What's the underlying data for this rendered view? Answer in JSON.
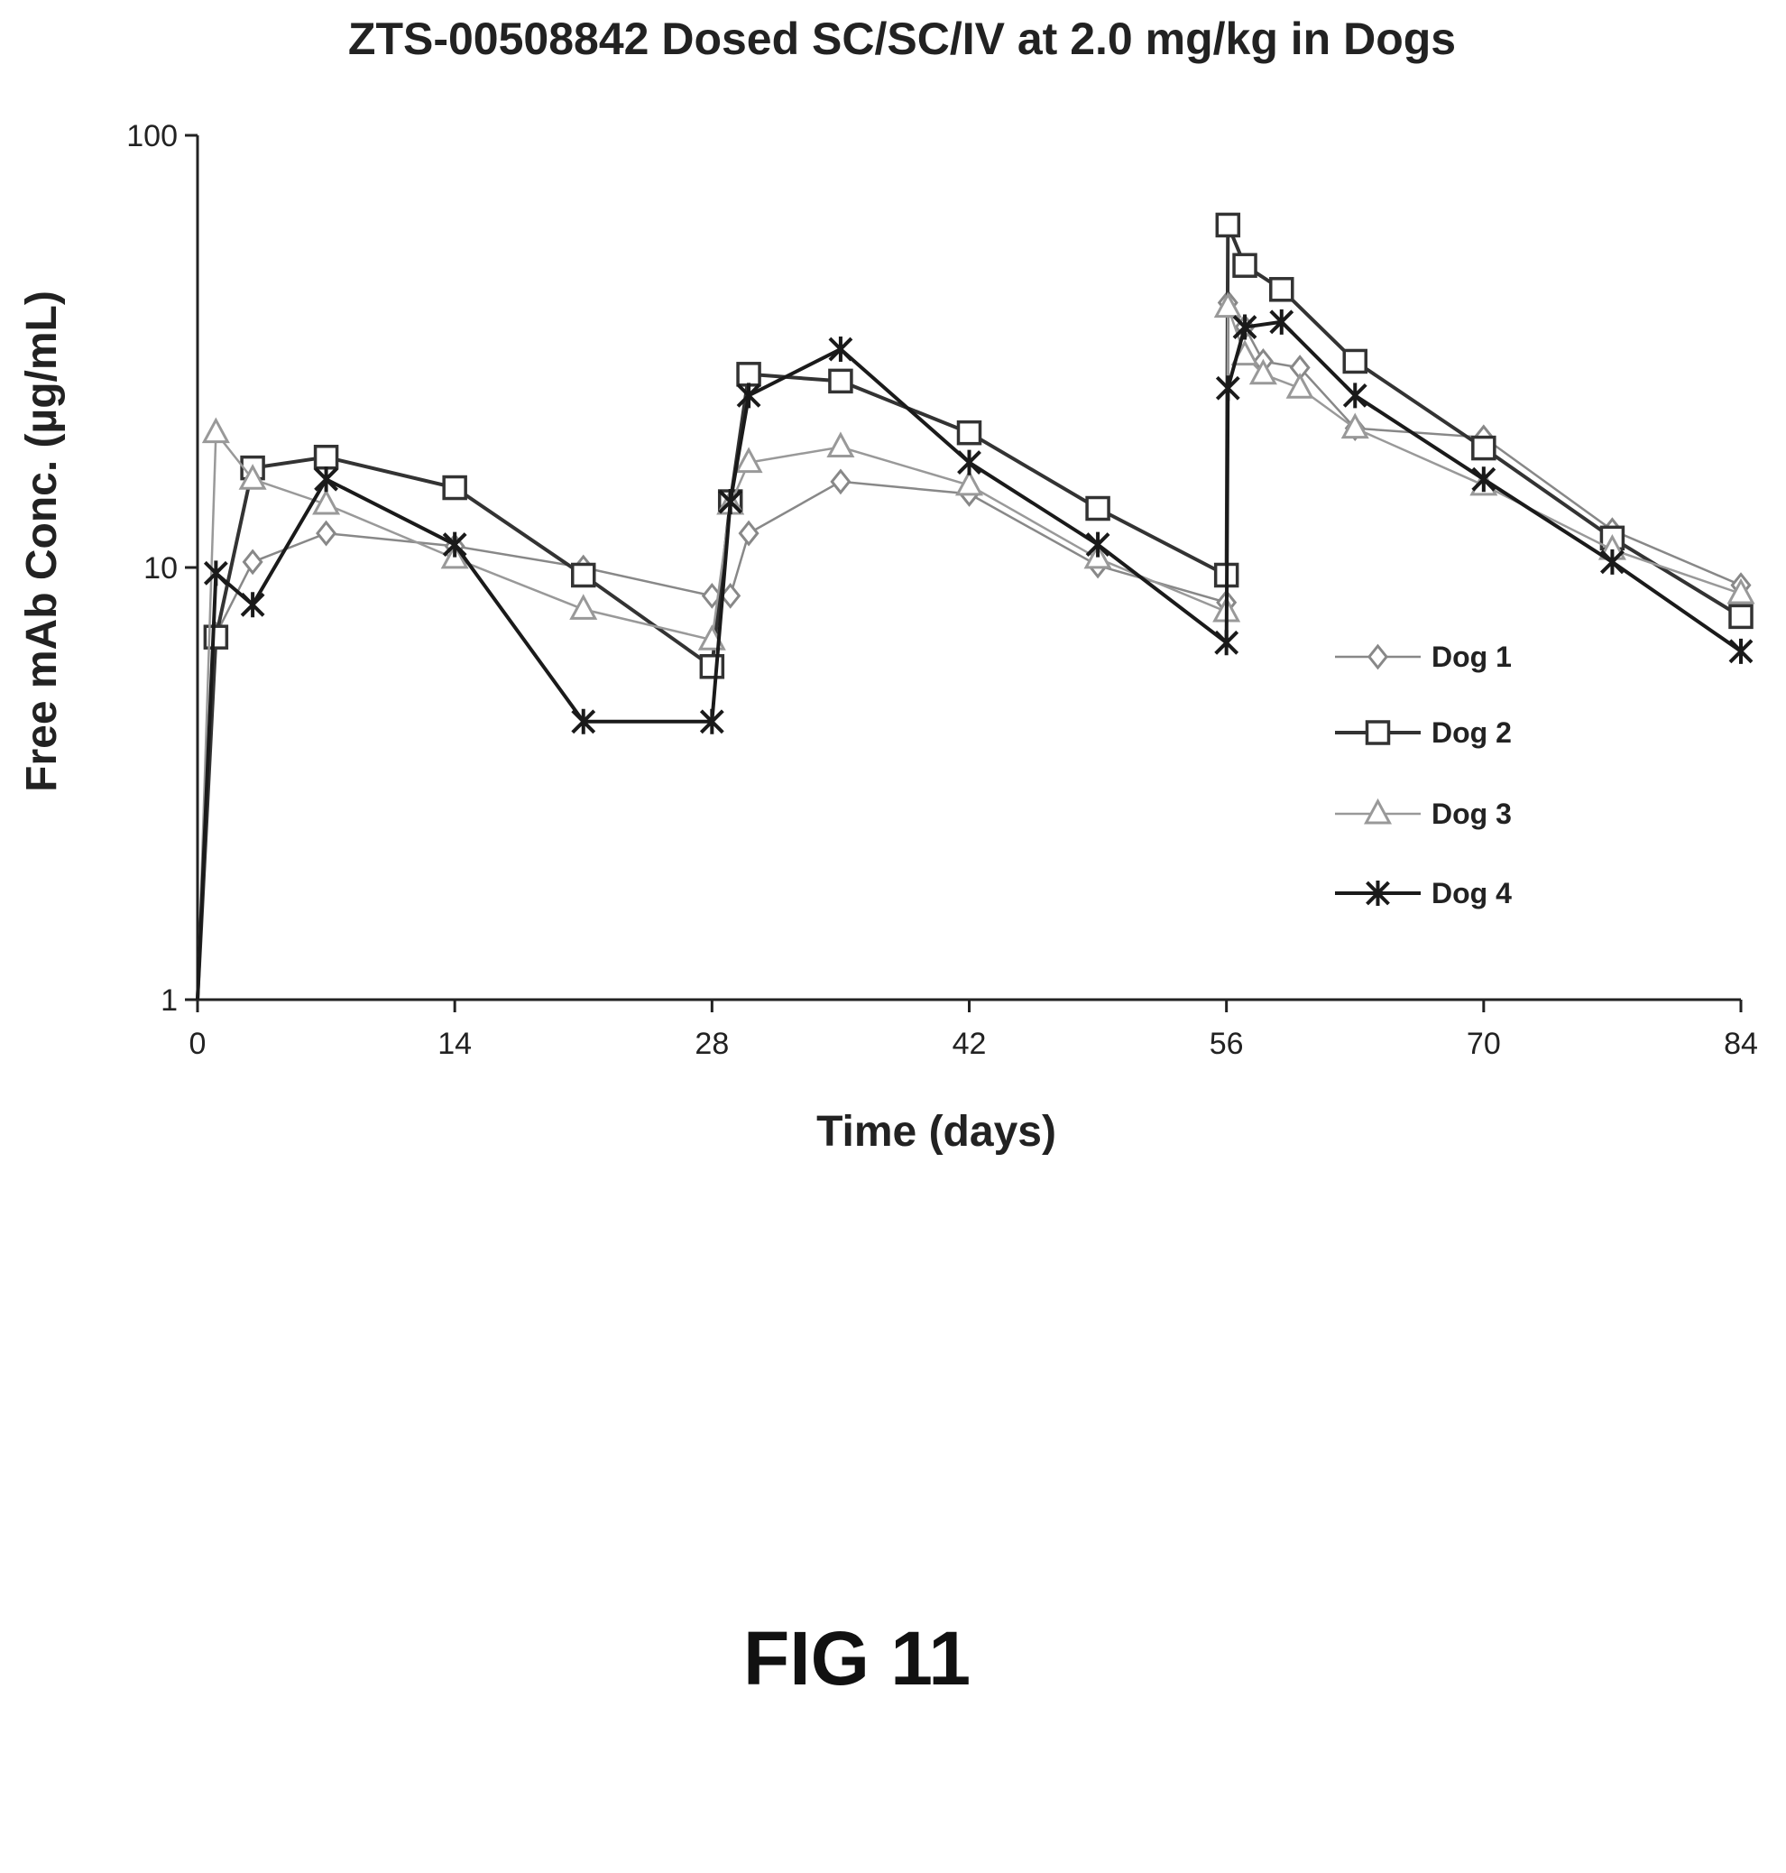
{
  "chart_data": {
    "type": "line",
    "title": "ZTS-00508842 Dosed SC/SC/IV at 2.0 mg/kg in Dogs",
    "xlabel": "Time (days)",
    "ylabel": "Free mAb Conc. (µg/mL)",
    "xlim": [
      0,
      84
    ],
    "ylim": [
      1,
      100
    ],
    "y_scale": "log",
    "x_ticks": [
      0,
      14,
      28,
      42,
      56,
      70,
      84
    ],
    "y_ticks": [
      1,
      10,
      100
    ],
    "grid": false,
    "legend_position": "right",
    "series": [
      {
        "name": "Dog 1",
        "marker": "diamond",
        "color": "#888888",
        "x": [
          0,
          1,
          3,
          7,
          14,
          21,
          28,
          29,
          30,
          35,
          42,
          49,
          56,
          56.08,
          57,
          58,
          60,
          63,
          70,
          77,
          84
        ],
        "y": [
          1,
          7.0,
          10.3,
          12.0,
          11.2,
          10.0,
          8.6,
          8.6,
          12.0,
          15.8,
          14.8,
          10.1,
          8.3,
          41,
          36,
          30,
          29,
          21,
          20,
          12.2,
          9.1
        ]
      },
      {
        "name": "Dog 2",
        "marker": "square",
        "color": "#333333",
        "x": [
          0,
          1,
          3,
          7,
          14,
          21,
          28,
          29,
          30,
          35,
          42,
          49,
          56,
          56.08,
          57,
          59,
          63,
          70,
          77,
          84
        ],
        "y": [
          1,
          6.9,
          17.0,
          18.0,
          15.3,
          9.6,
          5.9,
          14.2,
          28.0,
          27.0,
          20.5,
          13.7,
          9.6,
          62,
          50,
          44,
          30,
          18.9,
          11.7,
          7.7
        ]
      },
      {
        "name": "Dog 3",
        "marker": "triangle",
        "color": "#999999",
        "x": [
          0,
          1,
          3,
          7,
          14,
          21,
          28,
          29,
          30,
          35,
          42,
          49,
          56,
          56.08,
          57,
          58,
          60,
          63,
          70,
          77,
          84
        ],
        "y": [
          1,
          20.5,
          16.0,
          14.0,
          10.5,
          8.0,
          6.8,
          14.0,
          17.5,
          19.0,
          15.5,
          10.5,
          7.9,
          40,
          31,
          28,
          26,
          21,
          15.5,
          11.0,
          8.7
        ]
      },
      {
        "name": "Dog 4",
        "marker": "asterisk",
        "color": "#1a1a1a",
        "x": [
          0,
          1,
          3,
          7,
          14,
          21,
          28,
          29,
          30,
          35,
          42,
          49,
          56,
          56.08,
          57,
          59,
          63,
          70,
          77,
          84
        ],
        "y": [
          1,
          9.7,
          8.2,
          16.0,
          11.3,
          4.4,
          4.4,
          14.2,
          25.0,
          32.0,
          17.5,
          11.3,
          6.7,
          26,
          36,
          37,
          25,
          16.0,
          10.3,
          6.4
        ]
      }
    ]
  },
  "figure_caption": "FIG 11"
}
